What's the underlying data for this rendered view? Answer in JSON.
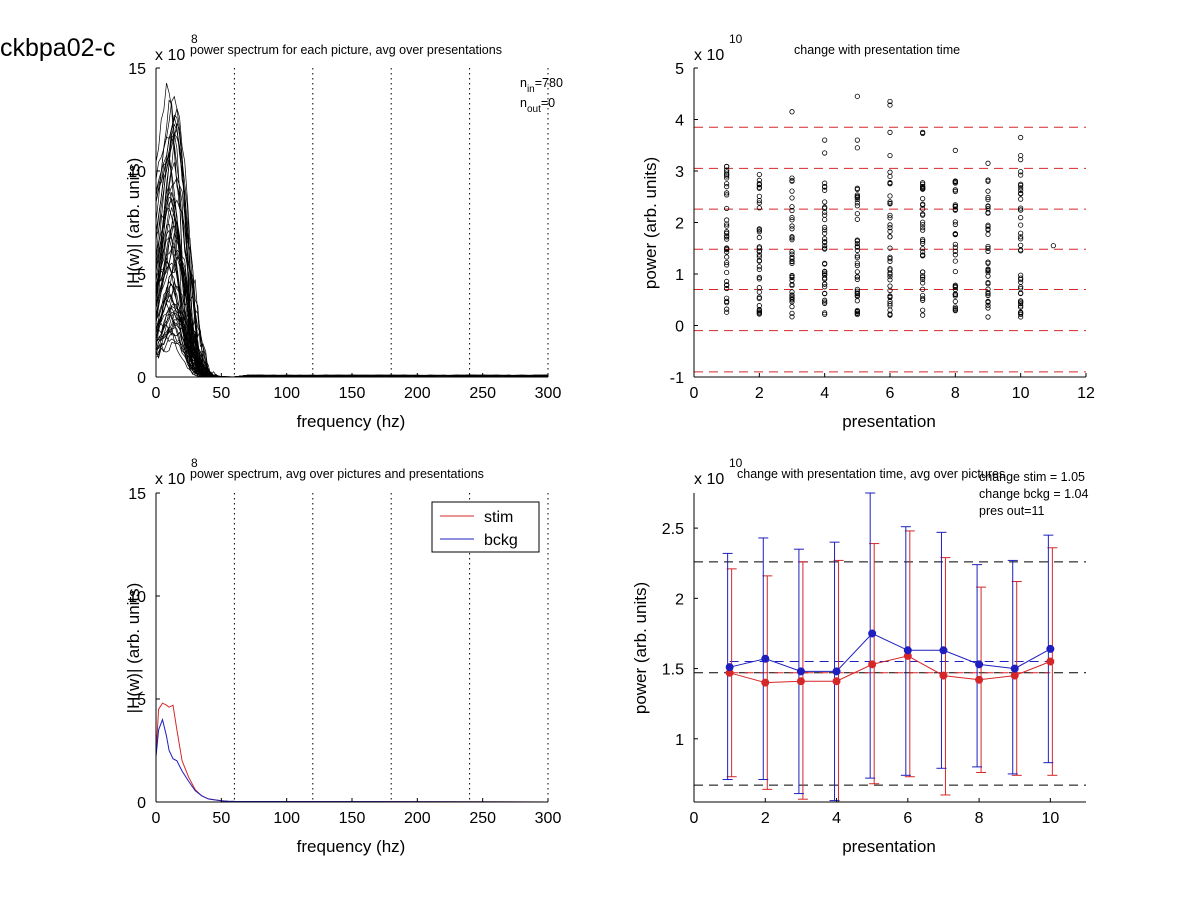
{
  "figure_label": "ckbpa02-c",
  "chart_data": [
    {
      "type": "line",
      "title": "power spectrum for each picture, avg over presentations",
      "xlabel": "frequency (hz)",
      "ylabel": "|H(w)| (arb. units)",
      "xlim": [
        0,
        300
      ],
      "ylim": [
        0,
        15
      ],
      "x_ticks": [
        "0",
        "50",
        "100",
        "150",
        "200",
        "250",
        "300"
      ],
      "y_ticks": [
        "0",
        "5",
        "10",
        "15"
      ],
      "y_multiplier": "x 10",
      "y_exponent": "8",
      "vertical_dotted_lines_x": [
        60,
        120,
        180,
        240,
        300
      ],
      "annotations": [
        {
          "main": "n",
          "sub": "in",
          "rest": "=780"
        },
        {
          "main": "n",
          "sub": "out",
          "rest": "=0"
        }
      ],
      "peak_range": {
        "min": 1.5,
        "max": 14.6
      },
      "series_count": 60,
      "series_color": "#000000"
    },
    {
      "type": "scatter",
      "title": "change with presentation time",
      "xlabel": "presentation",
      "ylabel": "power (arb. units)",
      "xlim": [
        0,
        12
      ],
      "ylim": [
        -1,
        5
      ],
      "x_ticks": [
        "0",
        "2",
        "4",
        "6",
        "8",
        "10",
        "12"
      ],
      "y_ticks": [
        "-1",
        "0",
        "1",
        "2",
        "3",
        "4",
        "5"
      ],
      "y_multiplier": "x 10",
      "y_exponent": "10",
      "dashed_lines_y": [
        -0.9,
        -0.1,
        0.7,
        1.48,
        2.26,
        3.05,
        3.85
      ],
      "dashed_color": "#d62728",
      "column_ranges": [
        {
          "x": 1,
          "min": 0.25,
          "max": 3.15
        },
        {
          "x": 2,
          "min": 0.2,
          "max": 3.1
        },
        {
          "x": 3,
          "min": 0.15,
          "max": 3.1
        },
        {
          "x": 4,
          "min": 0.2,
          "max": 3.0
        },
        {
          "x": 5,
          "min": 0.2,
          "max": 2.7
        },
        {
          "x": 6,
          "min": 0.2,
          "max": 3.05
        },
        {
          "x": 7,
          "min": 0.2,
          "max": 3.0
        },
        {
          "x": 8,
          "min": 0.25,
          "max": 2.85
        },
        {
          "x": 9,
          "min": 0.15,
          "max": 2.9
        },
        {
          "x": 10,
          "min": 0.1,
          "max": 3.05
        }
      ],
      "outliers": [
        {
          "x": 3,
          "y": 4.15
        },
        {
          "x": 4,
          "y": 3.6
        },
        {
          "x": 4,
          "y": 3.35
        },
        {
          "x": 5,
          "y": 4.45
        },
        {
          "x": 5,
          "y": 3.6
        },
        {
          "x": 5,
          "y": 3.45
        },
        {
          "x": 6,
          "y": 4.35
        },
        {
          "x": 6,
          "y": 4.28
        },
        {
          "x": 6,
          "y": 3.75
        },
        {
          "x": 6,
          "y": 3.3
        },
        {
          "x": 7,
          "y": 3.75
        },
        {
          "x": 7,
          "y": 3.73
        },
        {
          "x": 8,
          "y": 3.4
        },
        {
          "x": 9,
          "y": 3.15
        },
        {
          "x": 10,
          "y": 3.65
        },
        {
          "x": 10,
          "y": 3.3
        },
        {
          "x": 10,
          "y": 3.22
        },
        {
          "x": 11,
          "y": 1.55
        }
      ]
    },
    {
      "type": "line",
      "title": "power spectrum, avg over pictures and presentations",
      "xlabel": "frequency (hz)",
      "ylabel": "|H(w)| (arb. units)",
      "xlim": [
        0,
        300
      ],
      "ylim": [
        0,
        15
      ],
      "x_ticks": [
        "0",
        "50",
        "100",
        "150",
        "200",
        "250",
        "300"
      ],
      "y_ticks": [
        "0",
        "5",
        "10",
        "15"
      ],
      "y_multiplier": "x 10",
      "y_exponent": "8",
      "vertical_dotted_lines_x": [
        60,
        120,
        180,
        240,
        300
      ],
      "legend": "top-right",
      "series": [
        {
          "name": "stim",
          "color": "#d62728",
          "x": [
            0,
            2,
            5,
            8,
            10,
            13,
            16,
            20,
            25,
            30,
            35,
            40,
            45,
            50,
            55,
            60,
            300
          ],
          "y": [
            2.3,
            4.5,
            4.8,
            4.7,
            4.6,
            4.7,
            3.5,
            2.0,
            1.2,
            0.6,
            0.3,
            0.15,
            0.1,
            0.06,
            0.04,
            0.03,
            0.0
          ]
        },
        {
          "name": "bckg",
          "color": "#1f1fbf",
          "x": [
            0,
            2,
            5,
            8,
            10,
            13,
            16,
            20,
            25,
            30,
            35,
            40,
            45,
            50,
            55,
            60,
            300
          ],
          "y": [
            2.2,
            3.5,
            4.0,
            3.2,
            2.5,
            2.1,
            2.0,
            1.5,
            1.0,
            0.55,
            0.3,
            0.15,
            0.1,
            0.06,
            0.04,
            0.03,
            0.0
          ]
        }
      ]
    },
    {
      "type": "line",
      "title": "change with presentation time, avg over pictures",
      "xlabel": "presentation",
      "ylabel": "power (arb. units)",
      "xlim": [
        0,
        11
      ],
      "ylim": [
        0.55,
        2.75
      ],
      "x_ticks": [
        "0",
        "2",
        "4",
        "6",
        "8",
        "10"
      ],
      "y_ticks": [
        "1",
        "1.5",
        "2",
        "2.5"
      ],
      "y_multiplier": "x 10",
      "y_exponent": "10",
      "annotations": [
        "change stim = 1.05",
        "change bckg = 1.04",
        "pres out=11"
      ],
      "black_dashed_lines_y": [
        0.67,
        1.47,
        2.26
      ],
      "series": [
        {
          "name": "stim",
          "color": "#d62728",
          "x": [
            1,
            2,
            3,
            4,
            5,
            6,
            7,
            8,
            9,
            10
          ],
          "y": [
            1.47,
            1.4,
            1.41,
            1.41,
            1.53,
            1.59,
            1.45,
            1.42,
            1.45,
            1.55
          ],
          "err_low": [
            0.73,
            0.64,
            0.57,
            0.55,
            0.68,
            0.73,
            0.6,
            0.76,
            0.74,
            0.74
          ],
          "err_high": [
            2.21,
            2.16,
            2.26,
            2.27,
            2.39,
            2.48,
            2.29,
            2.08,
            2.12,
            2.36
          ]
        },
        {
          "name": "bckg",
          "color": "#1f1fbf",
          "x": [
            1,
            2,
            3,
            4,
            5,
            6,
            7,
            8,
            9,
            10
          ],
          "y": [
            1.51,
            1.57,
            1.48,
            1.48,
            1.75,
            1.63,
            1.63,
            1.53,
            1.5,
            1.64
          ],
          "err_low": [
            0.71,
            0.71,
            0.61,
            0.56,
            0.72,
            0.74,
            0.79,
            0.8,
            0.75,
            0.83
          ],
          "err_high": [
            2.32,
            2.43,
            2.35,
            2.4,
            2.75,
            2.51,
            2.47,
            2.24,
            2.27,
            2.45
          ]
        }
      ],
      "dashed_means": [
        {
          "color": "#d62728",
          "y": 1.47
        },
        {
          "color": "#1f1fbf",
          "y": 1.55
        }
      ]
    }
  ]
}
